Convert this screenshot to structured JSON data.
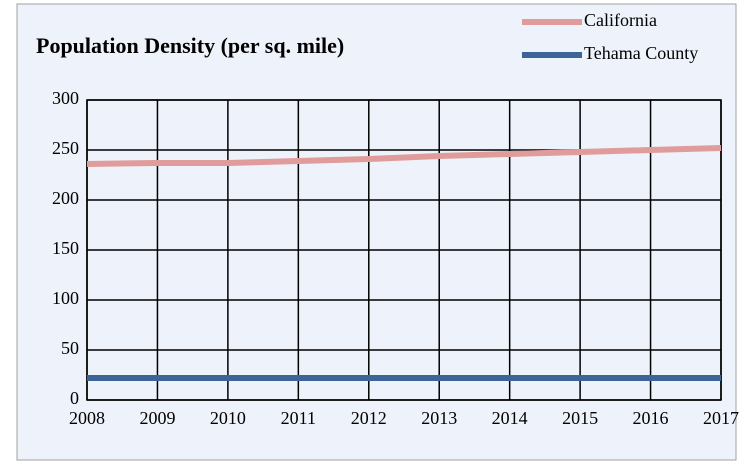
{
  "chart_data": {
    "type": "line",
    "title": "Population Density (per sq. mile)",
    "x": [
      2008,
      2009,
      2010,
      2011,
      2012,
      2013,
      2014,
      2015,
      2016,
      2017
    ],
    "series": [
      {
        "name": "California",
        "color": "#e09b9b",
        "values": [
          236,
          237,
          237,
          239,
          241,
          244,
          246,
          248,
          250,
          252
        ]
      },
      {
        "name": "Tehama County",
        "color": "#3c6496",
        "values": [
          22,
          22,
          22,
          22,
          22,
          22,
          22,
          22,
          22,
          22
        ]
      }
    ],
    "xlim": [
      2008,
      2017
    ],
    "xticks": [
      2008,
      2009,
      2010,
      2011,
      2012,
      2013,
      2014,
      2015,
      2016,
      2017
    ],
    "ylim": [
      0,
      300
    ],
    "yticks": [
      0,
      50,
      100,
      150,
      200,
      250,
      300
    ],
    "grid": true,
    "legend": "top-right"
  }
}
